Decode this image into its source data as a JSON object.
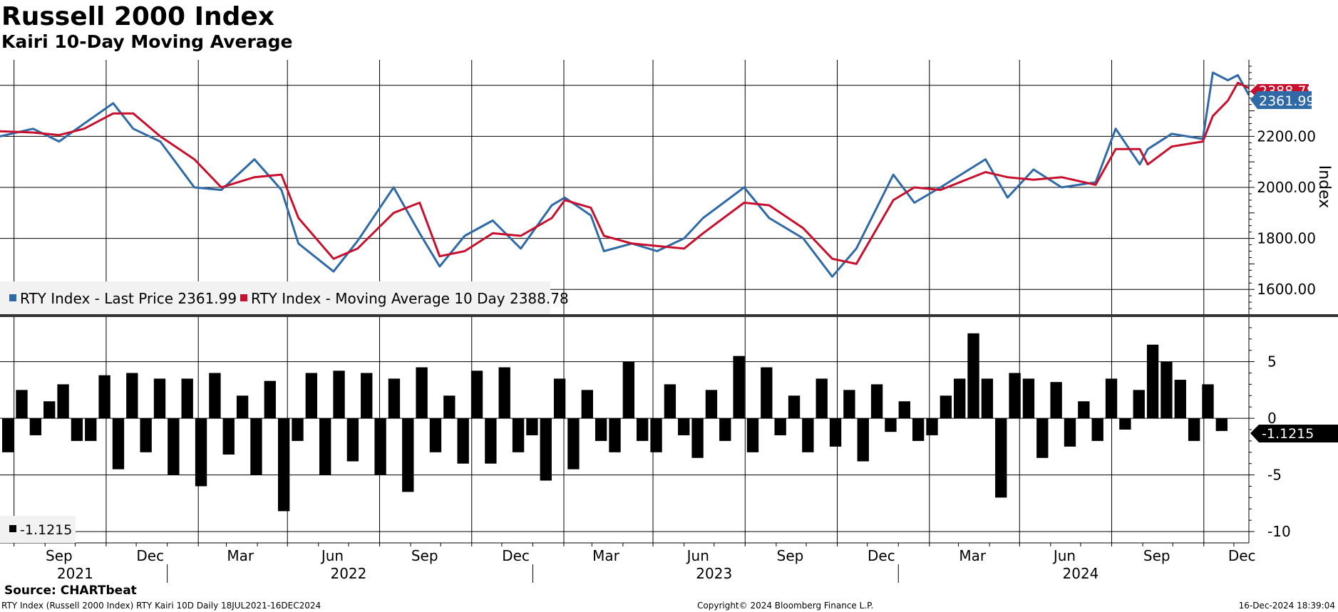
{
  "title": "Russell 2000 Index",
  "subtitle": "Kairi 10-Day Moving Average",
  "footer": {
    "source": "Source: CHARTbeat",
    "description": "RTY Index (Russell 2000 Index) RTY Kairi 10D  Daily 18JUL2021-16DEC2024",
    "copyright": "Copyright© 2024 Bloomberg Finance L.P.",
    "timestamp": "16-Dec-2024 18:39:04"
  },
  "colors": {
    "price": "#2f6aa7",
    "moving_average": "#c8102e",
    "kairi": "#000000",
    "grid": "#000000"
  },
  "chart_data": [
    {
      "type": "line",
      "ylabel": "Index",
      "ylim": [
        1500,
        2500
      ],
      "yticks": [
        "1600.00",
        "1800.00",
        "2000.00",
        "2200.00"
      ],
      "grid": true,
      "legend_position": "bottom-left",
      "x_month_labels": [
        "Sep",
        "Dec",
        "Mar",
        "Jun",
        "Sep",
        "Dec",
        "Mar",
        "Jun",
        "Sep",
        "Dec",
        "Mar",
        "Jun",
        "Sep",
        "Dec"
      ],
      "x_year_labels": [
        "2021",
        "2022",
        "2023",
        "2024"
      ],
      "x": [
        "2021-07-18",
        "2021-08-20",
        "2021-09-15",
        "2021-10-10",
        "2021-11-08",
        "2021-11-28",
        "2021-12-25",
        "2022-01-28",
        "2022-02-24",
        "2022-03-29",
        "2022-04-25",
        "2022-05-12",
        "2022-06-16",
        "2022-07-10",
        "2022-08-15",
        "2022-09-10",
        "2022-09-30",
        "2022-10-25",
        "2022-11-22",
        "2022-12-20",
        "2023-01-20",
        "2023-02-02",
        "2023-02-28",
        "2023-03-13",
        "2023-04-10",
        "2023-05-05",
        "2023-06-01",
        "2023-06-20",
        "2023-07-31",
        "2023-08-25",
        "2023-09-28",
        "2023-10-27",
        "2023-11-20",
        "2023-12-27",
        "2024-01-17",
        "2024-02-12",
        "2024-03-28",
        "2024-04-19",
        "2024-05-15",
        "2024-06-12",
        "2024-07-16",
        "2024-08-05",
        "2024-08-29",
        "2024-09-06",
        "2024-09-30",
        "2024-10-31",
        "2024-11-10",
        "2024-11-25",
        "2024-12-05",
        "2024-12-16"
      ],
      "series": [
        {
          "name": "RTY Index - Last Price",
          "last_value": "2361.99",
          "values": [
            2200,
            2230,
            2180,
            2250,
            2330,
            2230,
            2180,
            2000,
            1990,
            2110,
            1990,
            1780,
            1670,
            1790,
            2000,
            1820,
            1690,
            1810,
            1870,
            1760,
            1930,
            1960,
            1890,
            1750,
            1780,
            1750,
            1800,
            1880,
            2000,
            1880,
            1800,
            1650,
            1760,
            2050,
            1940,
            2000,
            2110,
            1960,
            2070,
            2000,
            2020,
            2230,
            2090,
            2150,
            2210,
            2190,
            2450,
            2420,
            2440,
            2362
          ]
        },
        {
          "name": "RTY Index - Moving Average 10 Day",
          "last_value": "2388.78",
          "values": [
            2220,
            2215,
            2205,
            2230,
            2290,
            2290,
            2200,
            2110,
            2000,
            2040,
            2050,
            1880,
            1720,
            1760,
            1900,
            1940,
            1730,
            1750,
            1820,
            1810,
            1880,
            1950,
            1920,
            1810,
            1780,
            1770,
            1760,
            1820,
            1940,
            1930,
            1840,
            1720,
            1700,
            1950,
            2000,
            1990,
            2060,
            2040,
            2030,
            2040,
            2010,
            2150,
            2150,
            2090,
            2160,
            2180,
            2280,
            2340,
            2410,
            2389
          ]
        }
      ]
    },
    {
      "type": "bar",
      "ylim": [
        -11,
        9
      ],
      "yticks": [
        "5",
        "0",
        "-5",
        "-10"
      ],
      "grid": true,
      "legend_position": "bottom-left",
      "series": [
        {
          "name": "",
          "last_value": "-1.1215",
          "values": [
            -3,
            2.5,
            -1.5,
            1.5,
            3,
            -2,
            -2,
            3.8,
            -4.5,
            4,
            -3,
            3.5,
            -5,
            3.5,
            -6,
            4,
            -3.2,
            2,
            -5,
            3.3,
            -8.2,
            -2,
            4,
            -5,
            4.2,
            -3.8,
            4,
            -5,
            3.5,
            -6.5,
            4.5,
            -3,
            2,
            -4,
            4.2,
            -4,
            4.5,
            -3,
            -1.5,
            -5.5,
            3.5,
            -4.5,
            2.5,
            -2,
            -3,
            5,
            -2,
            -3,
            3,
            -1.5,
            -3.5,
            2.5,
            -2,
            5.5,
            -3,
            4.5,
            -1.5,
            2,
            -3,
            3.5,
            -2.5,
            2.5,
            -3.8,
            3,
            -1.2,
            1.5,
            -2,
            -1.5,
            2,
            3.5,
            7.5,
            3.5,
            -7,
            4,
            3.5,
            -3.5,
            3.2,
            -2.5,
            1.5,
            -2,
            3.5,
            -1,
            2.5,
            6.5,
            5,
            3.4,
            -2,
            3,
            -1.1215
          ]
        }
      ]
    }
  ]
}
